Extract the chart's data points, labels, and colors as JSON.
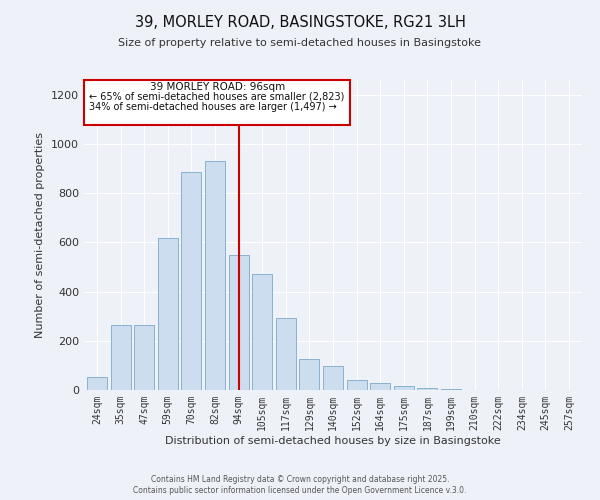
{
  "title": "39, MORLEY ROAD, BASINGSTOKE, RG21 3LH",
  "subtitle": "Size of property relative to semi-detached houses in Basingstoke",
  "xlabel": "Distribution of semi-detached houses by size in Basingstoke",
  "ylabel": "Number of semi-detached properties",
  "bar_color": "#ccddef",
  "bar_edge_color": "#7aaac8",
  "bg_color": "#eef2f8",
  "grid_color": "#ffffff",
  "vline_color": "#cc0000",
  "annotation_title": "39 MORLEY ROAD: 96sqm",
  "annotation_line1": "← 65% of semi-detached houses are smaller (2,823)",
  "annotation_line2": "34% of semi-detached houses are larger (1,497) →",
  "annotation_box_color": "#cc0000",
  "footer1": "Contains HM Land Registry data © Crown copyright and database right 2025.",
  "footer2": "Contains public sector information licensed under the Open Government Licence v.3.0.",
  "categories": [
    "24sqm",
    "35sqm",
    "47sqm",
    "59sqm",
    "70sqm",
    "82sqm",
    "94sqm",
    "105sqm",
    "117sqm",
    "129sqm",
    "140sqm",
    "152sqm",
    "164sqm",
    "175sqm",
    "187sqm",
    "199sqm",
    "210sqm",
    "222sqm",
    "234sqm",
    "245sqm",
    "257sqm"
  ],
  "values": [
    52,
    263,
    263,
    617,
    885,
    930,
    550,
    470,
    293,
    128,
    97,
    40,
    27,
    15,
    10,
    5,
    2,
    1,
    0,
    0,
    0
  ],
  "vline_index": 6,
  "ylim": [
    0,
    1260
  ],
  "yticks": [
    0,
    200,
    400,
    600,
    800,
    1000,
    1200
  ]
}
